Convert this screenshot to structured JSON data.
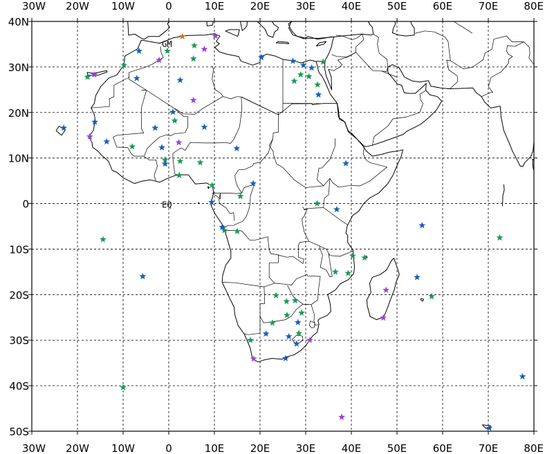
{
  "map": {
    "lon_range": [
      -30,
      80
    ],
    "lat_range": [
      -50,
      40
    ],
    "grid": true,
    "x_ticks": [
      {
        "lon": -30,
        "label": "30W"
      },
      {
        "lon": -20,
        "label": "20W"
      },
      {
        "lon": -10,
        "label": "10W"
      },
      {
        "lon": 0,
        "label": "0"
      },
      {
        "lon": 10,
        "label": "10E"
      },
      {
        "lon": 20,
        "label": "20E"
      },
      {
        "lon": 30,
        "label": "30E"
      },
      {
        "lon": 40,
        "label": "40E"
      },
      {
        "lon": 50,
        "label": "50E"
      },
      {
        "lon": 60,
        "label": "60E"
      },
      {
        "lon": 70,
        "label": "70E"
      },
      {
        "lon": 80,
        "label": "80E"
      }
    ],
    "y_ticks": [
      {
        "lat": 40,
        "label": "40N"
      },
      {
        "lat": 30,
        "label": "30N"
      },
      {
        "lat": 20,
        "label": "20N"
      },
      {
        "lat": 10,
        "label": "10N"
      },
      {
        "lat": 0,
        "label": "0"
      },
      {
        "lat": -10,
        "label": "10S"
      },
      {
        "lat": -20,
        "label": "20S"
      },
      {
        "lat": -30,
        "label": "30S"
      },
      {
        "lat": -40,
        "label": "40S"
      },
      {
        "lat": -50,
        "label": "50S"
      }
    ],
    "labels": [
      {
        "text": "GM",
        "lon": -1.5,
        "lat": 35.0
      },
      {
        "text": "EQ",
        "lon": -1.5,
        "lat": -0.3
      }
    ],
    "colors": {
      "blue": "#1560bd",
      "green": "#1a9a55",
      "purple": "#9b3fe0",
      "orange": "#d9731a"
    }
  },
  "stations": [
    {
      "lon": -6.5,
      "lat": 33.5,
      "color": "blue"
    },
    {
      "lon": -9.8,
      "lat": 30.4,
      "color": "green"
    },
    {
      "lon": -17.8,
      "lat": 27.8,
      "color": "green"
    },
    {
      "lon": -16.3,
      "lat": 28.3,
      "color": "purple"
    },
    {
      "lon": -7.0,
      "lat": 27.5,
      "color": "blue"
    },
    {
      "lon": -2.1,
      "lat": 31.5,
      "color": "purple"
    },
    {
      "lon": -0.3,
      "lat": 33.5,
      "color": "green"
    },
    {
      "lon": 3.0,
      "lat": 36.7,
      "color": "orange"
    },
    {
      "lon": 5.6,
      "lat": 34.7,
      "color": "green"
    },
    {
      "lon": 7.8,
      "lat": 33.9,
      "color": "purple"
    },
    {
      "lon": 10.2,
      "lat": 36.8,
      "color": "purple"
    },
    {
      "lon": 5.4,
      "lat": 31.8,
      "color": "green"
    },
    {
      "lon": 2.5,
      "lat": 27.1,
      "color": "blue"
    },
    {
      "lon": 5.4,
      "lat": 22.7,
      "color": "purple"
    },
    {
      "lon": 0.9,
      "lat": 20.1,
      "color": "blue"
    },
    {
      "lon": 1.3,
      "lat": 18.2,
      "color": "green"
    },
    {
      "lon": 7.8,
      "lat": 16.8,
      "color": "blue"
    },
    {
      "lon": -3.0,
      "lat": 16.6,
      "color": "blue"
    },
    {
      "lon": -23.0,
      "lat": 16.6,
      "color": "blue"
    },
    {
      "lon": -16.2,
      "lat": 17.9,
      "color": "blue"
    },
    {
      "lon": -17.3,
      "lat": 14.7,
      "color": "purple"
    },
    {
      "lon": -13.6,
      "lat": 13.6,
      "color": "blue"
    },
    {
      "lon": -8.0,
      "lat": 12.5,
      "color": "green"
    },
    {
      "lon": -1.5,
      "lat": 12.3,
      "color": "blue"
    },
    {
      "lon": 2.2,
      "lat": 13.4,
      "color": "purple"
    },
    {
      "lon": -0.8,
      "lat": 9.6,
      "color": "green"
    },
    {
      "lon": -0.8,
      "lat": 8.7,
      "color": "blue"
    },
    {
      "lon": 2.5,
      "lat": 9.3,
      "color": "green"
    },
    {
      "lon": 2.3,
      "lat": 6.2,
      "color": "green"
    },
    {
      "lon": 6.9,
      "lat": 9.0,
      "color": "green"
    },
    {
      "lon": 14.9,
      "lat": 12.1,
      "color": "blue"
    },
    {
      "lon": 9.5,
      "lat": 4.0,
      "color": "green"
    },
    {
      "lon": 9.4,
      "lat": 0.3,
      "color": "blue"
    },
    {
      "lon": 18.5,
      "lat": 4.4,
      "color": "blue"
    },
    {
      "lon": 15.7,
      "lat": 1.6,
      "color": "green"
    },
    {
      "lon": 11.7,
      "lat": -5.2,
      "color": "blue"
    },
    {
      "lon": 12.2,
      "lat": -5.9,
      "color": "green"
    },
    {
      "lon": 15.0,
      "lat": -6.1,
      "color": "green"
    },
    {
      "lon": 20.3,
      "lat": 32.1,
      "color": "blue"
    },
    {
      "lon": 27.2,
      "lat": 31.3,
      "color": "blue"
    },
    {
      "lon": 29.5,
      "lat": 30.4,
      "color": "blue"
    },
    {
      "lon": 33.8,
      "lat": 31.1,
      "color": "green"
    },
    {
      "lon": 31.3,
      "lat": 29.8,
      "color": "blue"
    },
    {
      "lon": 28.9,
      "lat": 28.3,
      "color": "green"
    },
    {
      "lon": 30.7,
      "lat": 27.9,
      "color": "green"
    },
    {
      "lon": 27.5,
      "lat": 26.9,
      "color": "green"
    },
    {
      "lon": 32.6,
      "lat": 26.1,
      "color": "green"
    },
    {
      "lon": 32.8,
      "lat": 23.9,
      "color": "blue"
    },
    {
      "lon": 38.8,
      "lat": 8.8,
      "color": "blue"
    },
    {
      "lon": 32.5,
      "lat": 0.0,
      "color": "green"
    },
    {
      "lon": 36.8,
      "lat": -1.3,
      "color": "blue"
    },
    {
      "lon": 40.3,
      "lat": -11.5,
      "color": "green"
    },
    {
      "lon": 42.9,
      "lat": -11.9,
      "color": "green"
    },
    {
      "lon": 36.5,
      "lat": -15.0,
      "color": "green"
    },
    {
      "lon": 39.3,
      "lat": -15.3,
      "color": "green"
    },
    {
      "lon": 55.5,
      "lat": -4.8,
      "color": "blue"
    },
    {
      "lon": 72.5,
      "lat": -7.5,
      "color": "green"
    },
    {
      "lon": 54.4,
      "lat": -16.2,
      "color": "blue"
    },
    {
      "lon": 47.6,
      "lat": -19.0,
      "color": "purple"
    },
    {
      "lon": 57.6,
      "lat": -20.4,
      "color": "green"
    },
    {
      "lon": 47.0,
      "lat": -25.1,
      "color": "purple"
    },
    {
      "lon": 23.5,
      "lat": -20.2,
      "color": "green"
    },
    {
      "lon": 25.8,
      "lat": -21.5,
      "color": "green"
    },
    {
      "lon": 27.7,
      "lat": -21.3,
      "color": "green"
    },
    {
      "lon": 22.7,
      "lat": -26.2,
      "color": "green"
    },
    {
      "lon": 25.9,
      "lat": -24.5,
      "color": "green"
    },
    {
      "lon": 28.3,
      "lat": -26.1,
      "color": "blue"
    },
    {
      "lon": 29.1,
      "lat": -24.0,
      "color": "green"
    },
    {
      "lon": 21.3,
      "lat": -28.6,
      "color": "blue"
    },
    {
      "lon": 26.3,
      "lat": -29.2,
      "color": "blue"
    },
    {
      "lon": 28.5,
      "lat": -28.5,
      "color": "green"
    },
    {
      "lon": 28.0,
      "lat": -30.8,
      "color": "blue"
    },
    {
      "lon": 30.9,
      "lat": -30.0,
      "color": "purple"
    },
    {
      "lon": 17.9,
      "lat": -30.0,
      "color": "green"
    },
    {
      "lon": 18.6,
      "lat": -34.1,
      "color": "purple"
    },
    {
      "lon": 25.6,
      "lat": -34.0,
      "color": "blue"
    },
    {
      "lon": -14.4,
      "lat": -7.9,
      "color": "green"
    },
    {
      "lon": -5.7,
      "lat": -16.0,
      "color": "blue"
    },
    {
      "lon": -10.0,
      "lat": -40.4,
      "color": "green"
    },
    {
      "lon": 37.9,
      "lat": -46.9,
      "color": "purple"
    },
    {
      "lon": 77.5,
      "lat": -38.0,
      "color": "blue"
    },
    {
      "lon": 70.2,
      "lat": -49.3,
      "color": "blue"
    }
  ]
}
